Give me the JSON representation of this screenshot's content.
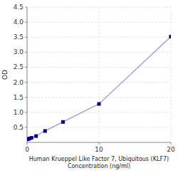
{
  "chart_data": {
    "type": "line",
    "xlabel": "Human Krueppel Like Factor 7, Ubiquitous (KLF7)\nConcentration (ng/ml)",
    "ylabel": "OD",
    "x": [
      0,
      0.156,
      0.313,
      0.625,
      1.25,
      2.5,
      5,
      10,
      20
    ],
    "values": [
      0.1,
      0.112,
      0.127,
      0.152,
      0.21,
      0.38,
      0.68,
      1.28,
      3.52
    ],
    "xlim": [
      0,
      20
    ],
    "xticks": [
      0,
      10,
      20
    ],
    "ylim": [
      0,
      4.5
    ],
    "yticks": [
      0.5,
      {
        "value": 1.0,
        "label": "1.0"
      },
      1.5,
      {
        "value": 2.0,
        "label": "2.0"
      },
      2.5,
      {
        "value": 3.0,
        "label": "3.0"
      },
      3.5,
      {
        "value": 4.0,
        "label": "4.0"
      },
      4.5
    ],
    "color": "#00008B",
    "marker": "square",
    "line_style": "solid",
    "grid": true
  }
}
